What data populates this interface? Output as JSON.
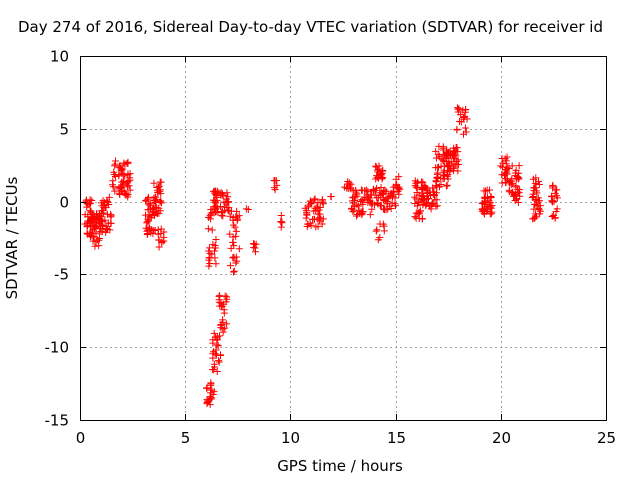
{
  "chart_data": {
    "type": "scatter",
    "title": "Day 274 of 2016, Sidereal Day-to-day VTEC variation (SDTVAR) for receiver id",
    "xlabel": "GPS time / hours",
    "ylabel": "SDTVAR / TECUs",
    "xlim": [
      0,
      25
    ],
    "ylim": [
      -15,
      10
    ],
    "xticks": [
      0,
      5,
      10,
      15,
      20,
      25
    ],
    "yticks": [
      -15,
      -10,
      -5,
      0,
      5,
      10
    ],
    "grid": true,
    "marker": "+",
    "color": "#ff0000",
    "segments": [
      {
        "x0": 0.2,
        "x1": 0.6,
        "ymin": -2.6,
        "ymax": 0.4,
        "n": 40
      },
      {
        "x0": 0.6,
        "x1": 1.0,
        "ymin": -3.2,
        "ymax": -0.8,
        "n": 40
      },
      {
        "x0": 1.0,
        "x1": 1.5,
        "ymin": -2.2,
        "ymax": 0.4,
        "n": 40
      },
      {
        "x0": 1.5,
        "x1": 2.4,
        "ymin": 0.2,
        "ymax": 2.8,
        "n": 60
      },
      {
        "x0": 3.1,
        "x1": 3.6,
        "ymin": -2.3,
        "ymax": 0.4,
        "n": 40
      },
      {
        "x0": 3.5,
        "x1": 3.9,
        "ymin": -1.0,
        "ymax": 1.5,
        "n": 30
      },
      {
        "x0": 3.7,
        "x1": 4.0,
        "ymin": -3.2,
        "ymax": -1.8,
        "n": 12
      },
      {
        "x0": 6.0,
        "x1": 6.4,
        "ymin": -14.0,
        "ymax": -12.0,
        "n": 20
      },
      {
        "x0": 6.3,
        "x1": 6.7,
        "ymin": -12.0,
        "ymax": -9.0,
        "n": 25
      },
      {
        "x0": 6.6,
        "x1": 7.0,
        "ymin": -9.0,
        "ymax": -6.3,
        "n": 25
      },
      {
        "x0": 6.1,
        "x1": 6.5,
        "ymin": -4.5,
        "ymax": -0.5,
        "n": 25
      },
      {
        "x0": 6.3,
        "x1": 7.1,
        "ymin": -1.0,
        "ymax": 0.8,
        "n": 50
      },
      {
        "x0": 7.1,
        "x1": 7.6,
        "ymin": -5.0,
        "ymax": -0.5,
        "n": 30
      },
      {
        "x0": 7.9,
        "x1": 8.0,
        "ymin": -0.6,
        "ymax": -0.3,
        "n": 2
      },
      {
        "x0": 8.2,
        "x1": 8.4,
        "ymin": -3.5,
        "ymax": -2.8,
        "n": 6
      },
      {
        "x0": 9.2,
        "x1": 9.4,
        "ymin": 0.8,
        "ymax": 1.5,
        "n": 6
      },
      {
        "x0": 9.5,
        "x1": 9.7,
        "ymin": -1.8,
        "ymax": -0.8,
        "n": 5
      },
      {
        "x0": 10.7,
        "x1": 11.6,
        "ymin": -1.8,
        "ymax": 0.2,
        "n": 45
      },
      {
        "x0": 11.9,
        "x1": 12.0,
        "ymin": 0.3,
        "ymax": 0.5,
        "n": 2
      },
      {
        "x0": 12.5,
        "x1": 12.9,
        "ymin": 0.8,
        "ymax": 1.4,
        "n": 10
      },
      {
        "x0": 12.9,
        "x1": 13.8,
        "ymin": -1.0,
        "ymax": 0.8,
        "n": 50
      },
      {
        "x0": 14.0,
        "x1": 14.4,
        "ymin": 1.5,
        "ymax": 2.5,
        "n": 20
      },
      {
        "x0": 13.8,
        "x1": 15.0,
        "ymin": -0.6,
        "ymax": 1.0,
        "n": 55
      },
      {
        "x0": 14.0,
        "x1": 14.5,
        "ymin": -2.8,
        "ymax": -1.5,
        "n": 8
      },
      {
        "x0": 15.0,
        "x1": 15.2,
        "ymin": 0.2,
        "ymax": 1.8,
        "n": 10
      },
      {
        "x0": 15.9,
        "x1": 16.3,
        "ymin": -1.3,
        "ymax": 1.5,
        "n": 30
      },
      {
        "x0": 16.2,
        "x1": 17.0,
        "ymin": -0.5,
        "ymax": 1.2,
        "n": 50
      },
      {
        "x0": 16.9,
        "x1": 17.5,
        "ymin": 1.0,
        "ymax": 3.8,
        "n": 50
      },
      {
        "x0": 17.4,
        "x1": 18.0,
        "ymin": 2.0,
        "ymax": 3.8,
        "n": 45
      },
      {
        "x0": 17.9,
        "x1": 18.4,
        "ymin": 4.6,
        "ymax": 6.5,
        "n": 20
      },
      {
        "x0": 19.1,
        "x1": 19.6,
        "ymin": -0.9,
        "ymax": 0.8,
        "n": 40
      },
      {
        "x0": 20.0,
        "x1": 20.3,
        "ymin": 1.0,
        "ymax": 3.2,
        "n": 20
      },
      {
        "x0": 20.3,
        "x1": 20.9,
        "ymin": 0.5,
        "ymax": 2.5,
        "n": 35
      },
      {
        "x0": 20.6,
        "x1": 20.9,
        "ymin": -0.1,
        "ymax": 0.8,
        "n": 8
      },
      {
        "x0": 21.5,
        "x1": 21.9,
        "ymin": -1.2,
        "ymax": 1.8,
        "n": 35
      },
      {
        "x0": 22.4,
        "x1": 22.7,
        "ymin": -1.2,
        "ymax": 1.4,
        "n": 20
      }
    ]
  }
}
